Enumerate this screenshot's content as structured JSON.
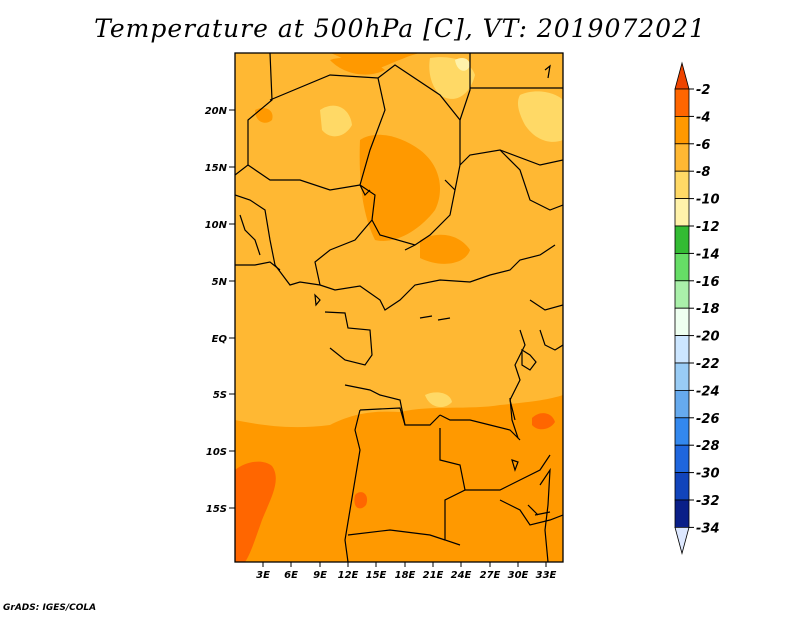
{
  "title": "Temperature at 500hPa [C], VT: 2019072021",
  "footer": "GrADS: IGES/COLA",
  "map": {
    "lat_labels": [
      "20N",
      "15N",
      "10N",
      "5N",
      "EQ",
      "5S",
      "10S",
      "15S"
    ],
    "lon_labels": [
      "3E",
      "6E",
      "9E",
      "12E",
      "15E",
      "18E",
      "21E",
      "24E",
      "27E",
      "30E",
      "33E"
    ]
  },
  "colorbar": {
    "labels": [
      "-2",
      "-4",
      "-6",
      "-8",
      "-10",
      "-12",
      "-14",
      "-16",
      "-18",
      "-20",
      "-22",
      "-24",
      "-26",
      "-28",
      "-30",
      "-32",
      "-34"
    ],
    "colors": [
      "#ee4400",
      "#ff6600",
      "#ff9900",
      "#ffb833",
      "#ffd966",
      "#fff2aa",
      "#33bb33",
      "#66dd66",
      "#aaf0aa",
      "#eefff0",
      "#cce6ff",
      "#99ccf5",
      "#66aaee",
      "#3388ee",
      "#1f66dd",
      "#1144bb",
      "#0a1f88",
      "#dde8ff"
    ]
  }
}
